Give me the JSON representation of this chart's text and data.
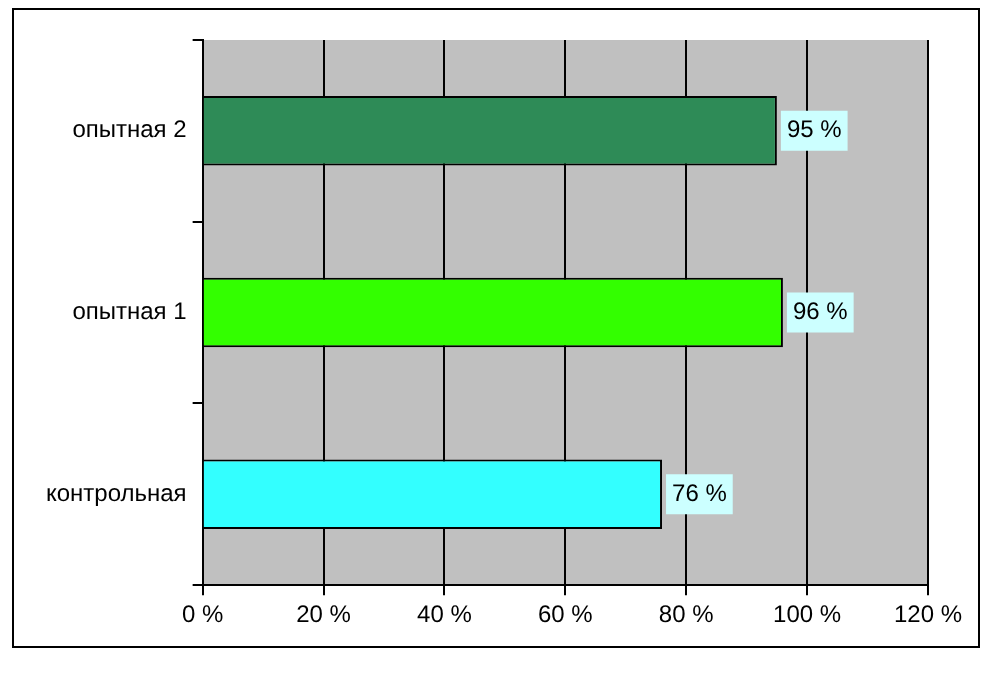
{
  "chart_data": {
    "type": "bar",
    "orientation": "horizontal",
    "categories": [
      "опытная 2",
      "опытная 1",
      "контрольная"
    ],
    "values": [
      95,
      96,
      76
    ],
    "colors": [
      "#2e8b57",
      "#33ff00",
      "#33ffff"
    ],
    "value_labels": [
      "95 %",
      "96 %",
      "76 %"
    ],
    "xlim": [
      0,
      120
    ],
    "xticks": [
      {
        "value": 0,
        "label": "0 %"
      },
      {
        "value": 20,
        "label": "20 %"
      },
      {
        "value": 40,
        "label": "40 %"
      },
      {
        "value": 60,
        "label": "60 %"
      },
      {
        "value": 80,
        "label": "80 %"
      },
      {
        "value": 100,
        "label": "100 %"
      },
      {
        "value": 120,
        "label": "120 %"
      }
    ],
    "grid": "x",
    "legend": false
  }
}
